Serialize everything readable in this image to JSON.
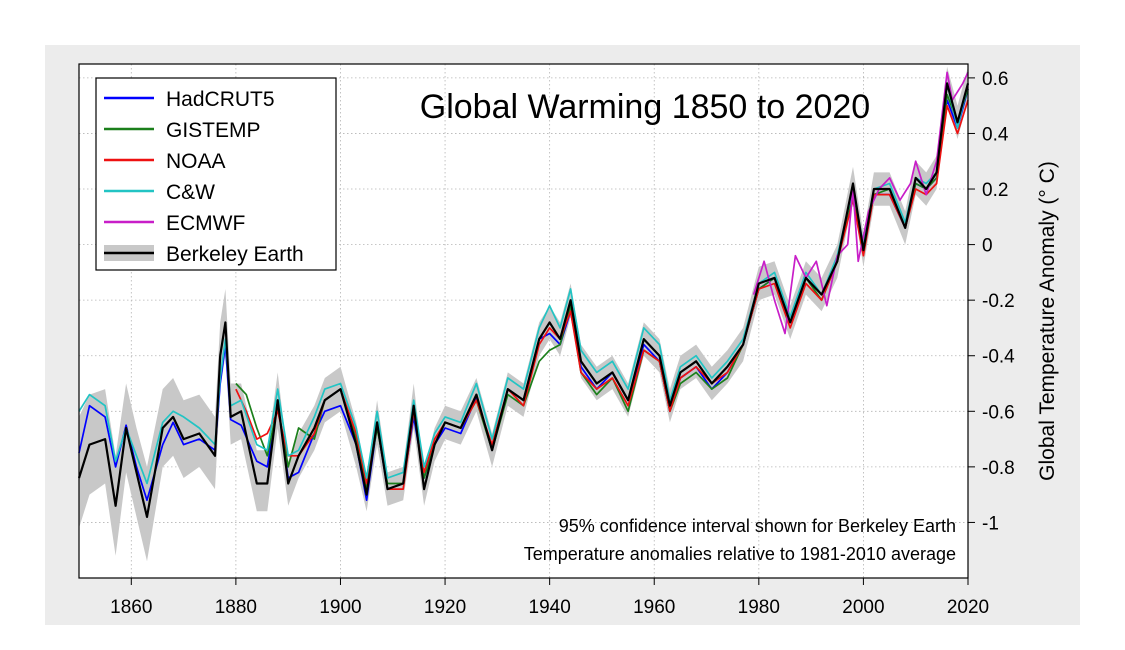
{
  "chart_data": {
    "type": "line",
    "title": "Global Warming 1850 to 2020",
    "ylabel": "Global Temperature Anomaly (° C)",
    "xlabel": "",
    "xlim": [
      1850,
      2020
    ],
    "ylim": [
      -1.2,
      0.65
    ],
    "x_ticks": [
      1860,
      1880,
      1900,
      1920,
      1940,
      1960,
      1980,
      2000,
      2020
    ],
    "y_ticks": [
      {
        "value": 0.6,
        "label": "0.6"
      },
      {
        "value": 0.4,
        "label": "0.4"
      },
      {
        "value": 0.2,
        "label": "0.2"
      },
      {
        "value": 0,
        "label": "0"
      },
      {
        "value": -0.2,
        "label": "-0.2"
      },
      {
        "value": -0.4,
        "label": "-0.4"
      },
      {
        "value": -0.6,
        "label": "-0.6"
      },
      {
        "value": -0.8,
        "label": "-0.8"
      },
      {
        "value": -1,
        "label": "-1"
      }
    ],
    "grid": true,
    "legend_position": "top-left",
    "annotations": [
      "95% confidence interval shown for Berkeley Earth",
      "Temperature anomalies relative to 1981-2010 average"
    ],
    "series": [
      {
        "name": "HadCRUT5",
        "color": "#0000ff",
        "x": [
          1850,
          1852,
          1855,
          1857,
          1859,
          1861,
          1863,
          1866,
          1868,
          1870,
          1873,
          1876,
          1877,
          1878,
          1879,
          1881,
          1884,
          1886,
          1888,
          1890,
          1892,
          1895,
          1897,
          1900,
          1903,
          1905,
          1907,
          1909,
          1912,
          1914,
          1916,
          1918,
          1920,
          1923,
          1926,
          1929,
          1932,
          1935,
          1938,
          1940,
          1942,
          1944,
          1946,
          1949,
          1952,
          1955,
          1958,
          1961,
          1963,
          1965,
          1968,
          1971,
          1974,
          1977,
          1980,
          1983,
          1986,
          1989,
          1992,
          1995,
          1998,
          2000,
          2002,
          2005,
          2008,
          2010,
          2012,
          2014,
          2016,
          2018,
          2020
        ],
        "y": [
          -0.75,
          -0.58,
          -0.62,
          -0.8,
          -0.65,
          -0.8,
          -0.92,
          -0.72,
          -0.64,
          -0.72,
          -0.7,
          -0.74,
          -0.5,
          -0.36,
          -0.63,
          -0.65,
          -0.78,
          -0.8,
          -0.57,
          -0.84,
          -0.82,
          -0.68,
          -0.6,
          -0.58,
          -0.72,
          -0.92,
          -0.65,
          -0.88,
          -0.86,
          -0.62,
          -0.84,
          -0.72,
          -0.66,
          -0.68,
          -0.55,
          -0.74,
          -0.52,
          -0.56,
          -0.34,
          -0.32,
          -0.36,
          -0.24,
          -0.44,
          -0.52,
          -0.46,
          -0.56,
          -0.36,
          -0.42,
          -0.6,
          -0.48,
          -0.44,
          -0.52,
          -0.46,
          -0.36,
          -0.16,
          -0.12,
          -0.28,
          -0.12,
          -0.18,
          -0.06,
          0.18,
          -0.02,
          0.18,
          0.18,
          0.06,
          0.22,
          0.2,
          0.24,
          0.52,
          0.42,
          0.56
        ]
      },
      {
        "name": "GISTEMP",
        "color": "#1b7f1b",
        "x": [
          1880,
          1882,
          1884,
          1886,
          1888,
          1890,
          1892,
          1895,
          1897,
          1900,
          1903,
          1905,
          1907,
          1909,
          1912,
          1914,
          1916,
          1918,
          1920,
          1923,
          1926,
          1929,
          1932,
          1935,
          1938,
          1940,
          1942,
          1944,
          1946,
          1949,
          1952,
          1955,
          1958,
          1961,
          1963,
          1965,
          1968,
          1971,
          1974,
          1977,
          1980,
          1983,
          1986,
          1989,
          1992,
          1995,
          1998,
          2000,
          2002,
          2005,
          2008,
          2010,
          2012,
          2014,
          2016,
          2018,
          2020
        ],
        "y": [
          -0.5,
          -0.54,
          -0.66,
          -0.76,
          -0.58,
          -0.8,
          -0.66,
          -0.7,
          -0.56,
          -0.52,
          -0.7,
          -0.88,
          -0.66,
          -0.86,
          -0.86,
          -0.6,
          -0.84,
          -0.72,
          -0.64,
          -0.66,
          -0.56,
          -0.74,
          -0.54,
          -0.58,
          -0.42,
          -0.38,
          -0.36,
          -0.22,
          -0.46,
          -0.54,
          -0.48,
          -0.6,
          -0.38,
          -0.42,
          -0.6,
          -0.5,
          -0.46,
          -0.52,
          -0.48,
          -0.36,
          -0.16,
          -0.12,
          -0.28,
          -0.12,
          -0.2,
          -0.06,
          0.18,
          -0.02,
          0.18,
          0.2,
          0.06,
          0.22,
          0.2,
          0.24,
          0.54,
          0.44,
          0.56
        ]
      },
      {
        "name": "NOAA",
        "color": "#ee1111",
        "x": [
          1880,
          1882,
          1884,
          1886,
          1888,
          1890,
          1892,
          1895,
          1897,
          1900,
          1903,
          1905,
          1907,
          1909,
          1912,
          1914,
          1916,
          1918,
          1920,
          1923,
          1926,
          1929,
          1932,
          1935,
          1938,
          1940,
          1942,
          1944,
          1946,
          1949,
          1952,
          1955,
          1958,
          1961,
          1963,
          1965,
          1968,
          1971,
          1974,
          1977,
          1980,
          1983,
          1986,
          1989,
          1992,
          1995,
          1998,
          2000,
          2002,
          2005,
          2008,
          2010,
          2012,
          2014,
          2016,
          2018,
          2020
        ],
        "y": [
          -0.52,
          -0.6,
          -0.7,
          -0.68,
          -0.6,
          -0.76,
          -0.76,
          -0.68,
          -0.56,
          -0.52,
          -0.68,
          -0.86,
          -0.64,
          -0.88,
          -0.88,
          -0.6,
          -0.82,
          -0.7,
          -0.64,
          -0.66,
          -0.56,
          -0.72,
          -0.52,
          -0.58,
          -0.36,
          -0.3,
          -0.34,
          -0.24,
          -0.46,
          -0.52,
          -0.48,
          -0.58,
          -0.38,
          -0.42,
          -0.6,
          -0.48,
          -0.44,
          -0.5,
          -0.46,
          -0.36,
          -0.16,
          -0.14,
          -0.3,
          -0.14,
          -0.2,
          -0.06,
          0.16,
          -0.04,
          0.18,
          0.18,
          0.06,
          0.2,
          0.18,
          0.22,
          0.5,
          0.4,
          0.52
        ]
      },
      {
        "name": "C&W",
        "color": "#22c4c4",
        "x": [
          1850,
          1852,
          1855,
          1857,
          1859,
          1861,
          1863,
          1866,
          1868,
          1870,
          1873,
          1876,
          1877,
          1878,
          1879,
          1881,
          1884,
          1886,
          1888,
          1890,
          1892,
          1895,
          1897,
          1900,
          1903,
          1905,
          1907,
          1909,
          1912,
          1914,
          1916,
          1918,
          1920,
          1923,
          1926,
          1929,
          1932,
          1935,
          1938,
          1940,
          1942,
          1944,
          1946,
          1949,
          1952,
          1955,
          1958,
          1961,
          1963,
          1965,
          1968,
          1971,
          1974,
          1977,
          1980,
          1983,
          1986,
          1989,
          1992,
          1995,
          1998,
          2000,
          2002,
          2005,
          2008,
          2010,
          2012,
          2014,
          2016,
          2018,
          2020
        ],
        "y": [
          -0.6,
          -0.54,
          -0.58,
          -0.78,
          -0.66,
          -0.76,
          -0.86,
          -0.64,
          -0.6,
          -0.62,
          -0.66,
          -0.72,
          -0.48,
          -0.34,
          -0.58,
          -0.56,
          -0.72,
          -0.74,
          -0.52,
          -0.76,
          -0.74,
          -0.62,
          -0.52,
          -0.5,
          -0.66,
          -0.84,
          -0.6,
          -0.84,
          -0.82,
          -0.56,
          -0.8,
          -0.68,
          -0.62,
          -0.64,
          -0.5,
          -0.7,
          -0.48,
          -0.52,
          -0.3,
          -0.22,
          -0.3,
          -0.16,
          -0.38,
          -0.46,
          -0.42,
          -0.52,
          -0.3,
          -0.36,
          -0.56,
          -0.44,
          -0.4,
          -0.48,
          -0.42,
          -0.34,
          -0.14,
          -0.1,
          -0.26,
          -0.1,
          -0.18,
          -0.04,
          0.2,
          0.0,
          0.2,
          0.22,
          0.08,
          0.24,
          0.22,
          0.26,
          0.58,
          0.42,
          0.58
        ]
      },
      {
        "name": "ECMWF",
        "color": "#c81ec8",
        "x": [
          1979,
          1981,
          1983,
          1985,
          1987,
          1989,
          1991,
          1993,
          1995,
          1997,
          1998,
          1999,
          2001,
          2003,
          2005,
          2007,
          2009,
          2010,
          2012,
          2014,
          2016,
          2017,
          2019,
          2020
        ],
        "y": [
          -0.18,
          -0.06,
          -0.2,
          -0.32,
          -0.04,
          -0.12,
          -0.06,
          -0.22,
          -0.04,
          0.0,
          0.2,
          -0.06,
          0.12,
          0.2,
          0.24,
          0.16,
          0.22,
          0.3,
          0.18,
          0.3,
          0.62,
          0.52,
          0.58,
          0.62
        ]
      },
      {
        "name": "Berkeley Earth",
        "color": "#000000",
        "x": [
          1850,
          1852,
          1855,
          1857,
          1859,
          1861,
          1863,
          1866,
          1868,
          1870,
          1873,
          1876,
          1877,
          1878,
          1879,
          1881,
          1884,
          1886,
          1888,
          1890,
          1892,
          1895,
          1897,
          1900,
          1903,
          1905,
          1907,
          1909,
          1912,
          1914,
          1916,
          1918,
          1920,
          1923,
          1926,
          1929,
          1932,
          1935,
          1938,
          1940,
          1942,
          1944,
          1946,
          1949,
          1952,
          1955,
          1958,
          1961,
          1963,
          1965,
          1968,
          1971,
          1974,
          1977,
          1980,
          1983,
          1986,
          1989,
          1992,
          1995,
          1998,
          2000,
          2002,
          2005,
          2008,
          2010,
          2012,
          2014,
          2016,
          2018,
          2020
        ],
        "y": [
          -0.84,
          -0.72,
          -0.7,
          -0.94,
          -0.66,
          -0.82,
          -0.98,
          -0.66,
          -0.62,
          -0.7,
          -0.68,
          -0.76,
          -0.4,
          -0.28,
          -0.62,
          -0.6,
          -0.86,
          -0.86,
          -0.56,
          -0.86,
          -0.76,
          -0.66,
          -0.56,
          -0.52,
          -0.72,
          -0.9,
          -0.64,
          -0.88,
          -0.86,
          -0.58,
          -0.88,
          -0.72,
          -0.64,
          -0.66,
          -0.54,
          -0.74,
          -0.52,
          -0.56,
          -0.34,
          -0.28,
          -0.34,
          -0.2,
          -0.42,
          -0.5,
          -0.46,
          -0.56,
          -0.34,
          -0.4,
          -0.58,
          -0.46,
          -0.42,
          -0.5,
          -0.44,
          -0.36,
          -0.14,
          -0.12,
          -0.28,
          -0.12,
          -0.18,
          -0.06,
          0.22,
          -0.02,
          0.2,
          0.2,
          0.06,
          0.24,
          0.2,
          0.26,
          0.58,
          0.44,
          0.58
        ]
      }
    ],
    "confidence_band": {
      "name": "Berkeley Earth 95% confidence interval",
      "color": "#c8c8c8",
      "x": [
        1850,
        1852,
        1855,
        1857,
        1859,
        1861,
        1863,
        1866,
        1868,
        1870,
        1873,
        1876,
        1877,
        1878,
        1879,
        1881,
        1884,
        1886,
        1888,
        1890,
        1892,
        1895,
        1897,
        1900,
        1903,
        1905,
        1907,
        1909,
        1912,
        1914,
        1916,
        1918,
        1920,
        1923,
        1926,
        1929,
        1932,
        1935,
        1938,
        1940,
        1942,
        1944,
        1946,
        1949,
        1952,
        1955,
        1958,
        1961,
        1963,
        1965,
        1968,
        1971,
        1974,
        1977,
        1980,
        1983,
        1986,
        1989,
        1992,
        1995,
        1998,
        2000,
        2002,
        2005,
        2008,
        2010,
        2012,
        2014,
        2016,
        2018,
        2020
      ],
      "lower": [
        -1.02,
        -0.9,
        -0.86,
        -1.12,
        -0.82,
        -0.98,
        -1.14,
        -0.8,
        -0.76,
        -0.84,
        -0.8,
        -0.88,
        -0.52,
        -0.4,
        -0.72,
        -0.7,
        -0.96,
        -0.96,
        -0.66,
        -0.94,
        -0.84,
        -0.74,
        -0.64,
        -0.6,
        -0.8,
        -0.96,
        -0.72,
        -0.94,
        -0.92,
        -0.66,
        -0.94,
        -0.78,
        -0.7,
        -0.72,
        -0.6,
        -0.8,
        -0.58,
        -0.62,
        -0.4,
        -0.34,
        -0.4,
        -0.26,
        -0.48,
        -0.56,
        -0.52,
        -0.62,
        -0.4,
        -0.46,
        -0.64,
        -0.52,
        -0.48,
        -0.56,
        -0.5,
        -0.42,
        -0.2,
        -0.18,
        -0.34,
        -0.18,
        -0.24,
        -0.12,
        0.16,
        -0.08,
        0.14,
        0.14,
        0.0,
        0.18,
        0.14,
        0.2,
        0.52,
        0.38,
        0.52
      ],
      "upper": [
        -0.62,
        -0.54,
        -0.52,
        -0.76,
        -0.5,
        -0.66,
        -0.8,
        -0.52,
        -0.48,
        -0.56,
        -0.54,
        -0.62,
        -0.28,
        -0.16,
        -0.5,
        -0.5,
        -0.74,
        -0.74,
        -0.46,
        -0.78,
        -0.68,
        -0.58,
        -0.48,
        -0.44,
        -0.64,
        -0.84,
        -0.56,
        -0.82,
        -0.8,
        -0.5,
        -0.82,
        -0.66,
        -0.58,
        -0.6,
        -0.48,
        -0.68,
        -0.46,
        -0.5,
        -0.28,
        -0.22,
        -0.28,
        -0.14,
        -0.36,
        -0.44,
        -0.4,
        -0.5,
        -0.28,
        -0.34,
        -0.52,
        -0.4,
        -0.36,
        -0.44,
        -0.38,
        -0.3,
        -0.08,
        -0.06,
        -0.22,
        -0.06,
        -0.12,
        0.0,
        0.28,
        0.04,
        0.26,
        0.26,
        0.12,
        0.3,
        0.26,
        0.32,
        0.64,
        0.5,
        0.64
      ]
    }
  }
}
